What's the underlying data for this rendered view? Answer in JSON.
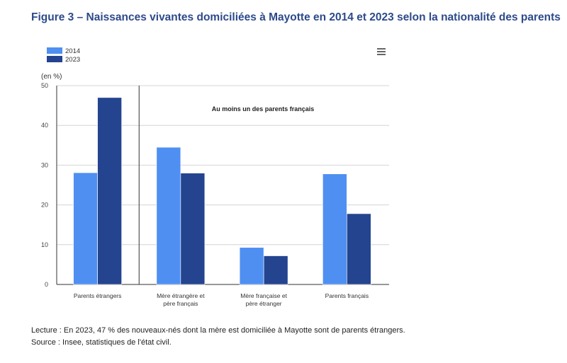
{
  "figure_title": "Figure 3 – Naissances vivantes domiciliées à Mayotte en 2014 et 2023 selon la nationalité des parents",
  "menu_icon": "hamburger-menu-icon",
  "notes": {
    "lecture": "Lecture : En 2023, 47 % des nouveaux-nés dont la mère est domiciliée à Mayotte sont de parents étrangers.",
    "source": "Source : Insee, statistiques de l'état civil."
  },
  "chart_data": {
    "type": "bar",
    "title": "",
    "ylabel": "(en %)",
    "xlabel": "",
    "ylim": [
      0,
      50
    ],
    "yticks": [
      0,
      10,
      20,
      30,
      40,
      50
    ],
    "grid": true,
    "legend_position": "top-left",
    "categories": [
      [
        "Parents étrangers"
      ],
      [
        "Mère étrangère et",
        "père français"
      ],
      [
        "Mère française et",
        "père étranger"
      ],
      [
        "Parents français"
      ]
    ],
    "series": [
      {
        "name": "2014",
        "color": "#4f8ff2",
        "values": [
          28.1,
          34.5,
          9.3,
          27.8
        ]
      },
      {
        "name": "2023",
        "color": "#24448f",
        "values": [
          47.0,
          28.0,
          7.2,
          17.8
        ]
      }
    ],
    "annotation": "Au moins un des parents français",
    "separator_after_category": 0
  }
}
